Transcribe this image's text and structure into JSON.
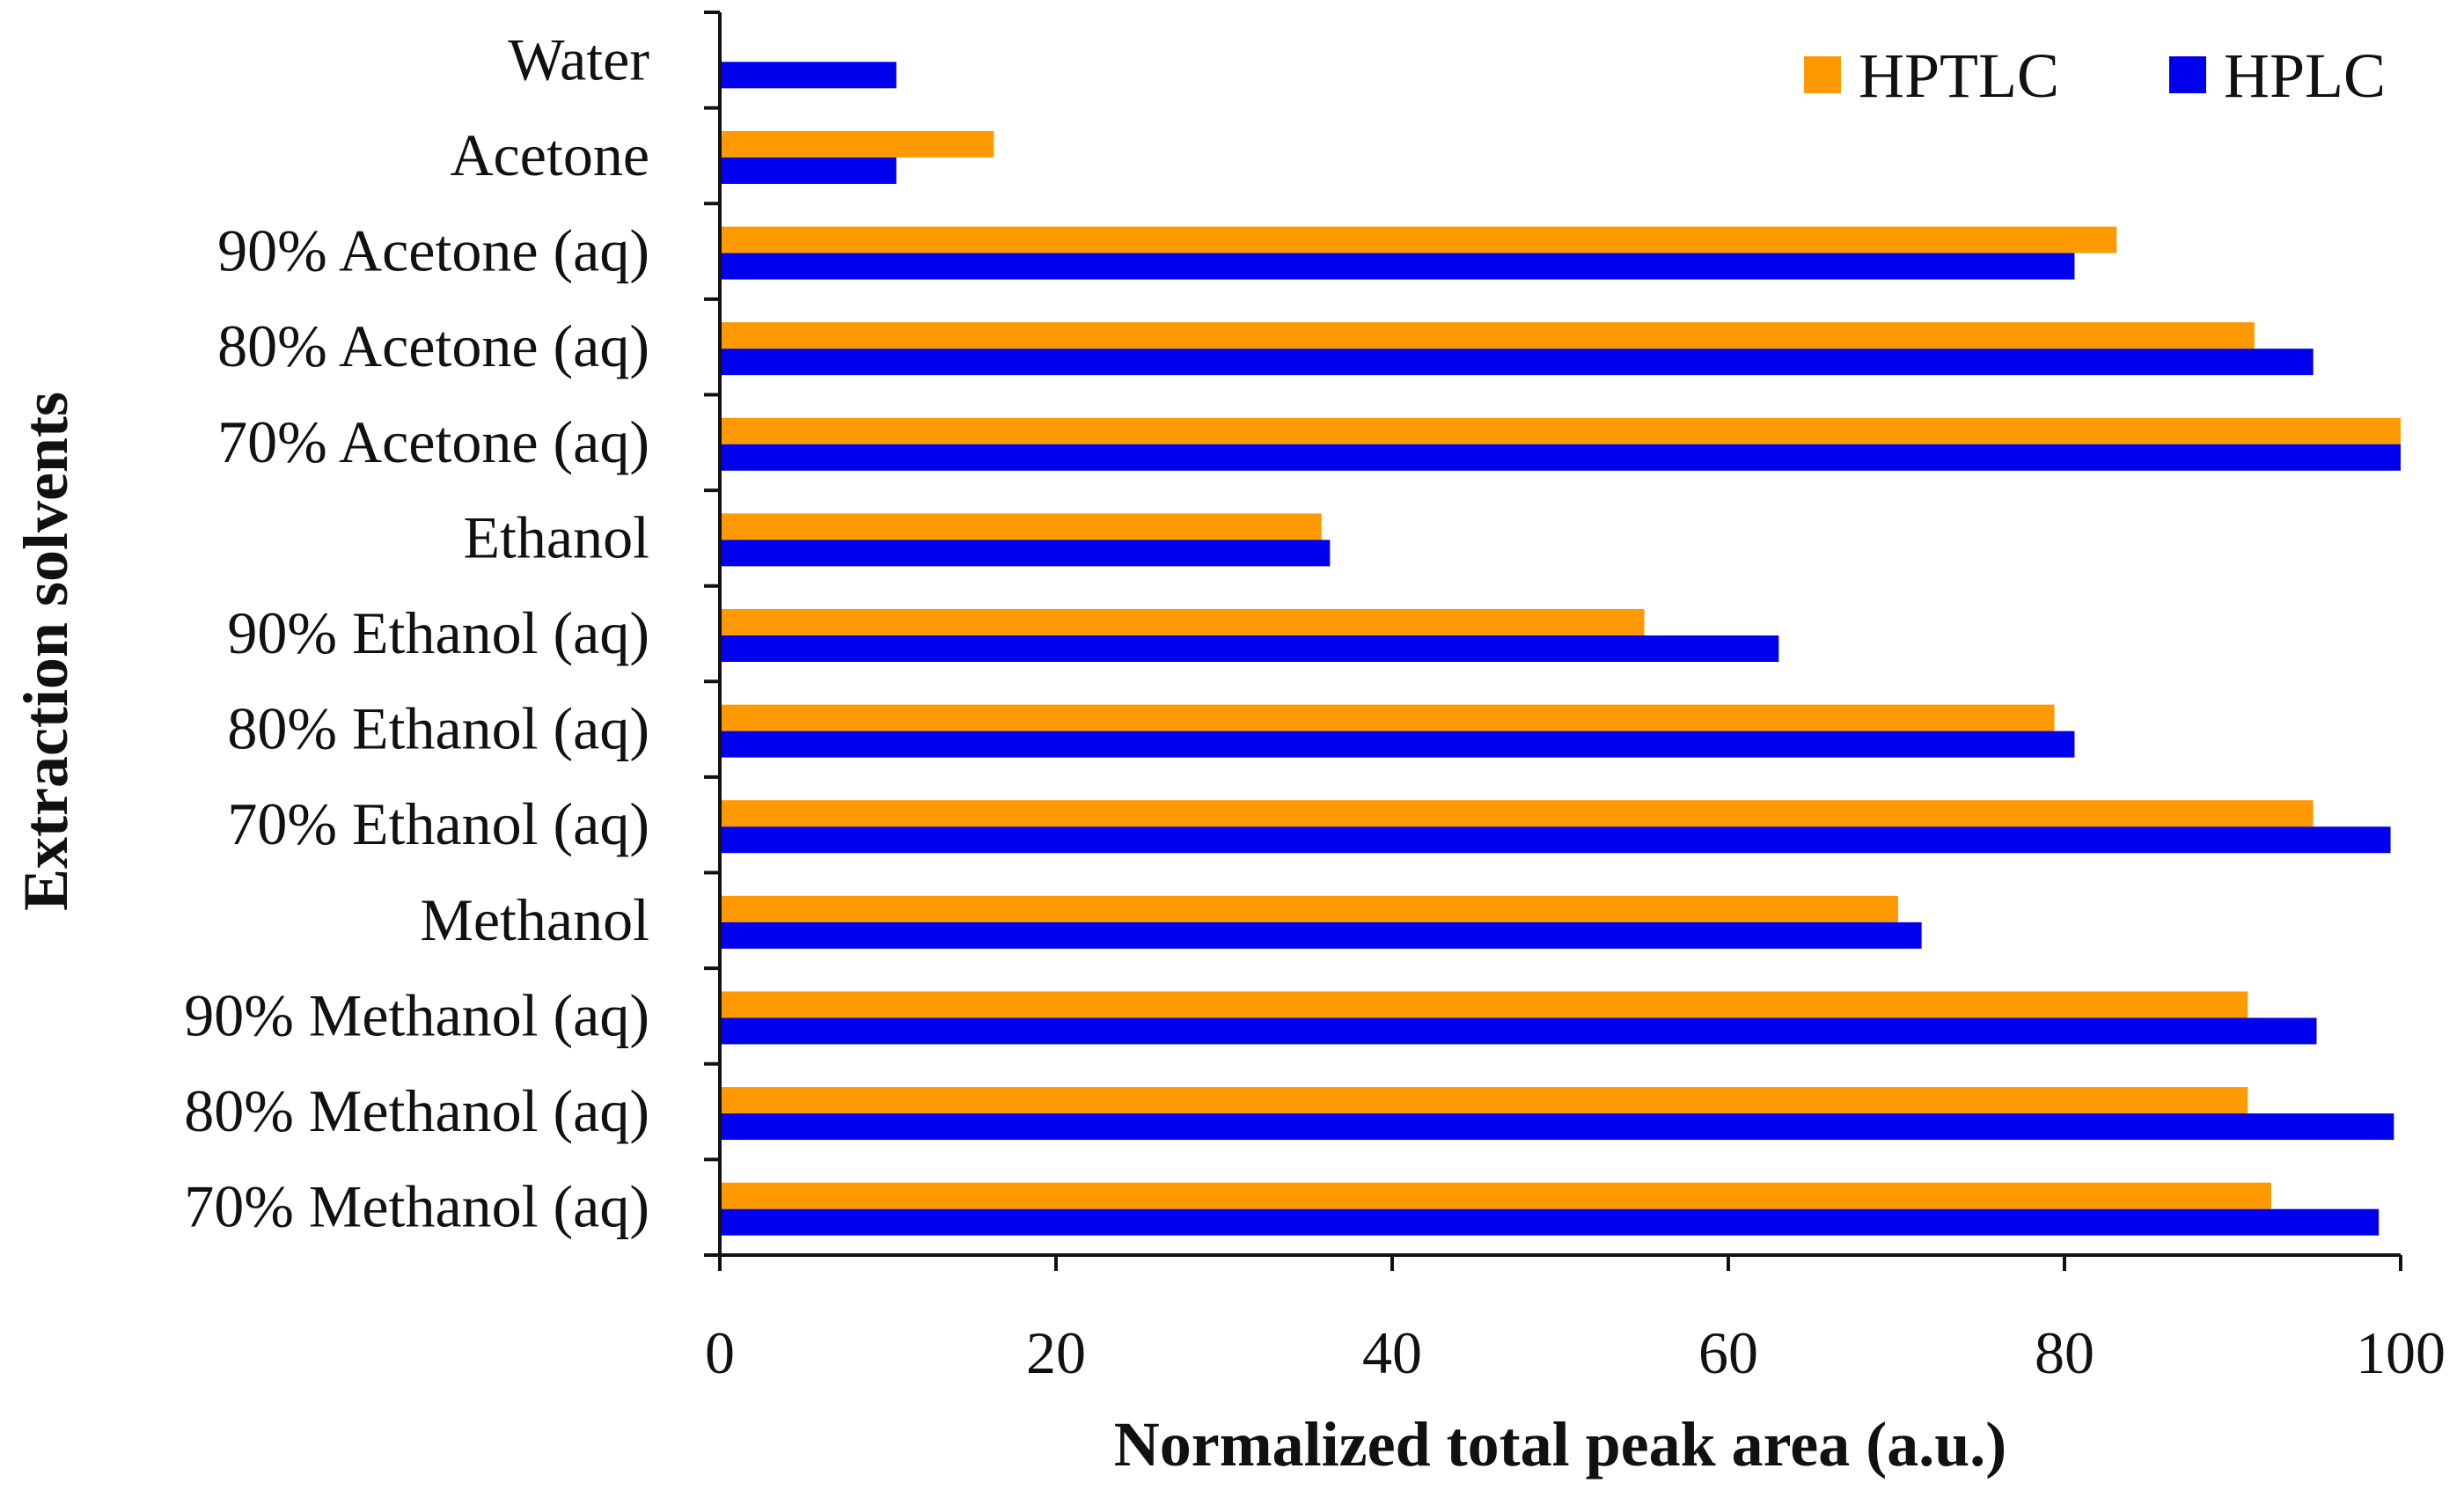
{
  "chart_data": {
    "type": "bar",
    "orientation": "horizontal",
    "title": "",
    "xlabel": "Normalized total peak area (a.u.)",
    "ylabel": "Extraction solvents",
    "xlim": [
      0,
      100
    ],
    "xticks": [
      0,
      20,
      40,
      60,
      80,
      100
    ],
    "grid": false,
    "legend_position": "top-right",
    "categories": [
      "Water",
      "Acetone",
      "90% Acetone (aq)",
      "80% Acetone (aq)",
      "70% Acetone (aq)",
      "Ethanol",
      "90% Ethanol (aq)",
      "80% Ethanol (aq)",
      "70% Ethanol (aq)",
      "Methanol",
      "90% Methanol (aq)",
      "80% Methanol (aq)",
      "70% Methanol (aq)"
    ],
    "series": [
      {
        "name": "HPTLC",
        "color": "#FF9900",
        "values": [
          0,
          16.3,
          83.1,
          91.3,
          100,
          35.8,
          55.0,
          79.4,
          94.8,
          70.1,
          90.9,
          90.9,
          92.3
        ]
      },
      {
        "name": "HPLC",
        "color": "#0000EE",
        "values": [
          10.5,
          10.5,
          80.6,
          94.8,
          100,
          36.3,
          63.0,
          80.6,
          99.4,
          71.5,
          95.0,
          99.6,
          98.7
        ]
      }
    ]
  }
}
